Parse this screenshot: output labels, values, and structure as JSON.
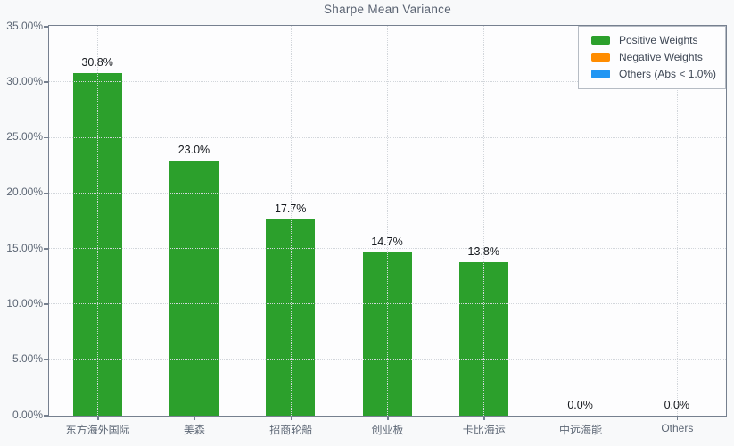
{
  "window": {
    "background": "#f8f9fa"
  },
  "chart_data": {
    "type": "bar",
    "title": "Sharpe Mean Variance",
    "categories": [
      "东方海外国际",
      "美森",
      "招商轮船",
      "创业板",
      "卡比海运",
      "中远海能",
      "Others"
    ],
    "series": [
      {
        "name": "Positive Weights",
        "color": "#2ca02c",
        "values": [
          30.8,
          23.0,
          17.7,
          14.7,
          13.8,
          0.0,
          0.0
        ]
      }
    ],
    "bar_value_labels": [
      "30.8%",
      "23.0%",
      "17.7%",
      "14.7%",
      "13.8%",
      "0.0%",
      "0.0%"
    ],
    "xlabel": "",
    "ylabel": "",
    "ylim": [
      0,
      35
    ],
    "ytick_values": [
      0,
      5,
      10,
      15,
      20,
      25,
      30,
      35
    ],
    "ytick_labels": [
      "0.00%",
      "5.00%",
      "10.00%",
      "15.00%",
      "20.00%",
      "25.00%",
      "30.00%",
      "35.00%"
    ],
    "grid": "dotted, both axes, drawn above bars",
    "legend": {
      "position": "upper right",
      "entries": [
        {
          "label": "Positive Weights",
          "color": "#2ca02c"
        },
        {
          "label": "Negative Weights",
          "color": "#ff8c00"
        },
        {
          "label": "Others (Abs < 1.0%)",
          "color": "#2196f3"
        }
      ]
    },
    "colors": {
      "positive": "#2ca02c",
      "negative": "#ff8c00",
      "others": "#2196f3",
      "figure_background": "#f8f9fa",
      "plot_background": "#fdfdfe",
      "spine": "#76808f",
      "grid": "#d2d6db",
      "tick_text": "#5d6775",
      "title_text": "#5a6372",
      "value_label_text": "#16191e"
    }
  }
}
